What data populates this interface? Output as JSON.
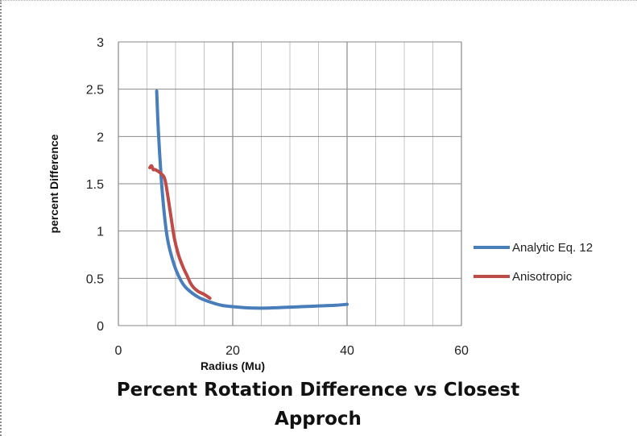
{
  "chart_data": {
    "type": "line",
    "title_lines": [
      "Percent Rotation Difference vs Closest",
      "Approch"
    ],
    "xlabel": "Radius (Mu)",
    "ylabel": "percent Difference",
    "xlim": [
      0,
      60
    ],
    "ylim": [
      0,
      3
    ],
    "x_ticks": [
      "0",
      "20",
      "40",
      "60"
    ],
    "y_ticks": [
      "0",
      "0.5",
      "1",
      "1.5",
      "2",
      "2.5",
      "3"
    ],
    "x_minor_gridlines_every": 4,
    "grid": true,
    "legend_position": "right",
    "series": [
      {
        "name": "Analytic Eq. 12",
        "color": "#4a7ebb",
        "x": [
          6.7,
          7.0,
          7.5,
          8.0,
          8.5,
          9.0,
          10.0,
          11.0,
          12.0,
          14.0,
          16.0,
          18.0,
          20.0,
          22.0,
          24.0,
          26.0,
          28.0,
          30.0,
          32.0,
          34.0,
          36.0,
          38.0,
          40.0
        ],
        "y": [
          2.48,
          2.05,
          1.55,
          1.2,
          0.95,
          0.8,
          0.6,
          0.47,
          0.39,
          0.3,
          0.25,
          0.215,
          0.2,
          0.19,
          0.185,
          0.185,
          0.19,
          0.195,
          0.2,
          0.205,
          0.21,
          0.215,
          0.225
        ]
      },
      {
        "name": "Anisotropic",
        "color": "#be4b48",
        "x": [
          5.5,
          5.8,
          6.1,
          6.4,
          7.0,
          7.6,
          8.0,
          8.3,
          8.7,
          9.2,
          9.8,
          10.5,
          11.3,
          12.0,
          12.6,
          13.2,
          14.0,
          15.0,
          16.0
        ],
        "y": [
          1.67,
          1.69,
          1.65,
          1.65,
          1.63,
          1.6,
          1.57,
          1.5,
          1.35,
          1.15,
          0.92,
          0.75,
          0.62,
          0.53,
          0.45,
          0.4,
          0.36,
          0.33,
          0.29
        ]
      }
    ]
  }
}
